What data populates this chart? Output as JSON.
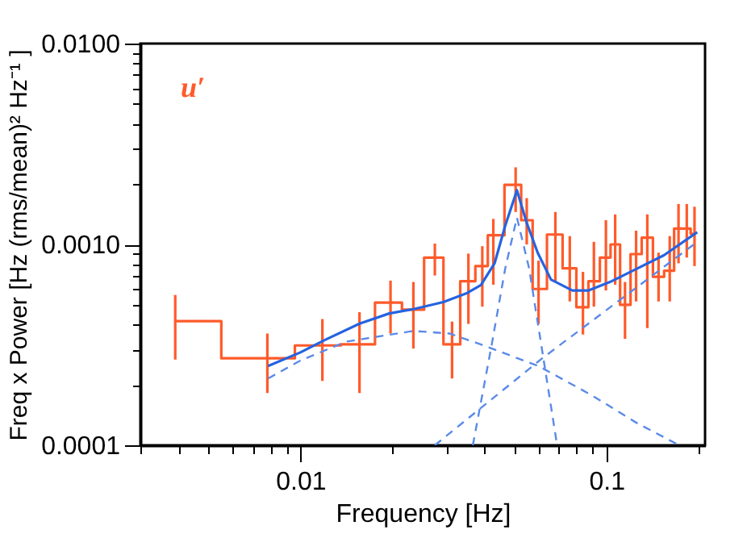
{
  "chart_data": {
    "type": "line",
    "xlabel": "Frequency [Hz]",
    "ylabel": "Freq x Power [Hz (rms/mean)² Hz⁻¹ ]",
    "log": "xy",
    "xlim": [
      0.003,
      0.21
    ],
    "ylim": [
      0.0001,
      0.01
    ],
    "xticks": [
      {
        "value": 0.003,
        "label": null
      },
      {
        "value": 0.004,
        "label": null
      },
      {
        "value": 0.005,
        "label": null
      },
      {
        "value": 0.006,
        "label": null
      },
      {
        "value": 0.007,
        "label": null
      },
      {
        "value": 0.008,
        "label": null
      },
      {
        "value": 0.009,
        "label": null
      },
      0.01,
      {
        "value": 0.02,
        "label": null
      },
      {
        "value": 0.03,
        "label": null
      },
      {
        "value": 0.04,
        "label": null
      },
      {
        "value": 0.05,
        "label": null
      },
      {
        "value": 0.06,
        "label": null
      },
      {
        "value": 0.07,
        "label": null
      },
      {
        "value": 0.08,
        "label": null
      },
      {
        "value": 0.09,
        "label": null
      },
      0.1,
      {
        "value": 0.2,
        "label": null
      }
    ],
    "yticks": [
      {
        "value": 0.0001,
        "label": "0.0001"
      },
      {
        "value": 0.0002,
        "label": null
      },
      {
        "value": 0.0003,
        "label": null
      },
      {
        "value": 0.0004,
        "label": null
      },
      {
        "value": 0.0005,
        "label": null
      },
      {
        "value": 0.0006,
        "label": null
      },
      {
        "value": 0.0007,
        "label": null
      },
      {
        "value": 0.0008,
        "label": null
      },
      {
        "value": 0.0009,
        "label": null
      },
      {
        "value": 0.001,
        "label": "0.0010"
      },
      {
        "value": 0.002,
        "label": null
      },
      {
        "value": 0.003,
        "label": null
      },
      {
        "value": 0.004,
        "label": null
      },
      {
        "value": 0.005,
        "label": null
      },
      {
        "value": 0.006,
        "label": null
      },
      {
        "value": 0.007,
        "label": null
      },
      {
        "value": 0.008,
        "label": null
      },
      {
        "value": 0.009,
        "label": null
      },
      {
        "value": 0.01,
        "label": "0.0100"
      }
    ],
    "series": [
      {
        "name": "u′",
        "type": "step",
        "color": "#ff5a2a",
        "x": [
          0.0039,
          0.0078,
          0.0118,
          0.0156,
          0.0197,
          0.0234,
          0.0275,
          0.0313,
          0.0354,
          0.0393,
          0.0427,
          0.0505,
          0.0549,
          0.06,
          0.0681,
          0.0759,
          0.0838,
          0.091,
          0.0996,
          0.1068,
          0.115,
          0.125,
          0.136,
          0.148,
          0.161,
          0.172,
          0.183,
          0.194
        ],
        "values": [
          0.000415,
          0.000271,
          0.000314,
          0.000318,
          0.000513,
          0.000473,
          0.00086,
          0.000318,
          0.000656,
          0.00078,
          0.00111,
          0.00198,
          0.00132,
          0.0006,
          0.00112,
          0.00076,
          0.000487,
          0.000656,
          0.00086,
          0.001,
          0.0005,
          0.000895,
          0.00108,
          0.00069,
          0.00074,
          0.0012,
          0.0012,
          0.00113
        ],
        "errors": [
          [
            0.000267,
            0.00056
          ],
          [
            0.000182,
            0.00036
          ],
          [
            0.000209,
            0.000425
          ],
          [
            0.000182,
            0.00046
          ],
          [
            0.00036,
            0.00066
          ],
          [
            0.000303,
            0.00065
          ],
          [
            0.0007,
            0.00101
          ],
          [
            0.000215,
            0.000413
          ],
          [
            0.000402,
            0.0009
          ],
          [
            0.00049,
            0.00098
          ],
          [
            0.00063,
            0.00134
          ],
          [
            0.00145,
            0.00242
          ],
          [
            0.001,
            0.0017
          ],
          [
            0.000402,
            0.00083
          ],
          [
            0.00065,
            0.00145
          ],
          [
            0.00052,
            0.0011
          ],
          [
            0.000356,
            0.00073
          ],
          [
            0.00049,
            0.00103
          ],
          [
            0.00059,
            0.00132
          ],
          [
            0.00063,
            0.00141
          ],
          [
            0.000339,
            0.00065
          ],
          [
            0.00052,
            0.00117
          ],
          [
            0.000383,
            0.00141
          ],
          [
            0.00052,
            0.00091
          ],
          [
            0.00052,
            0.0011
          ],
          [
            0.000805,
            0.00159
          ],
          [
            0.00086,
            0.00159
          ],
          [
            0.00078,
            0.00154
          ]
        ]
      },
      {
        "type": "line",
        "color": "#2563e0",
        "x": [
          0.00784,
          0.01,
          0.012,
          0.0156,
          0.0195,
          0.0234,
          0.0293,
          0.0351,
          0.0389,
          0.0431,
          0.0467,
          0.051,
          0.0549,
          0.0596,
          0.0659,
          0.0774,
          0.0875,
          0.1027,
          0.1257,
          0.154,
          0.198
        ],
        "values": [
          0.000248,
          0.00029,
          0.000334,
          0.000403,
          0.000453,
          0.000476,
          0.000516,
          0.000573,
          0.000628,
          0.000805,
          0.00124,
          0.00186,
          0.00128,
          0.00091,
          0.000668,
          0.00059,
          0.00059,
          0.00065,
          0.000757,
          0.000883,
          0.00115
        ]
      },
      {
        "type": "line",
        "color": "#5a8ae8",
        "line_style": "dashed",
        "x": [
          0.00784,
          0.01,
          0.0141,
          0.0234,
          0.0307,
          0.0388,
          0.06,
          0.0898,
          0.1247,
          0.173
        ],
        "values": [
          0.000215,
          0.000264,
          0.000328,
          0.000371,
          0.00036,
          0.000318,
          0.000248,
          0.000177,
          0.00013,
          0.0001
        ]
      },
      {
        "type": "line",
        "color": "#5a8ae8",
        "line_style": "dashed",
        "x": [
          0.0275,
          0.0617,
          0.198
        ],
        "values": [
          0.0001,
          0.000271,
          0.00103
        ]
      },
      {
        "type": "line",
        "color": "#5a8ae8",
        "line_style": "dashed",
        "x": [
          0.0366,
          0.0422,
          0.0467,
          0.051,
          0.0559,
          0.062,
          0.069
        ],
        "values": [
          0.0001,
          0.000318,
          0.00076,
          0.00136,
          0.00076,
          0.000281,
          0.0001
        ]
      }
    ]
  }
}
